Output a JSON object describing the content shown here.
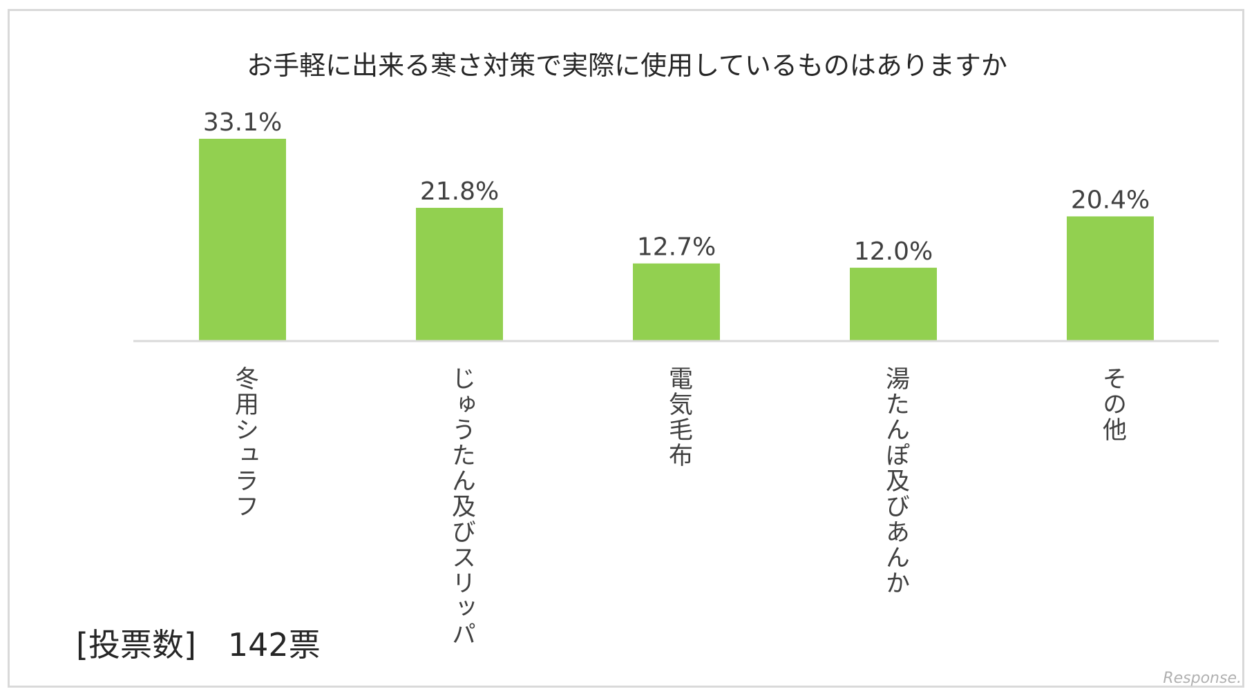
{
  "chart_data": {
    "type": "bar",
    "title": "お手軽に出来る寒さ対策で実際に使用しているものはありますか",
    "categories": [
      "冬用シュラフ",
      "じゅうたん及びスリッパ",
      "電気毛布",
      "湯たんぽ及びあんか",
      "その他"
    ],
    "values": [
      33.1,
      21.8,
      12.7,
      12.0,
      20.4
    ],
    "value_labels": [
      "33.1%",
      "21.8%",
      "12.7%",
      "12.0%",
      "20.4%"
    ],
    "unit": "%",
    "ylim": [
      0,
      33.1
    ],
    "grid": false,
    "legend": "none",
    "bar_color": "#92d050",
    "axis_color": "#d9d9d9"
  },
  "note": "[投票数]　142票",
  "watermark": "Response."
}
